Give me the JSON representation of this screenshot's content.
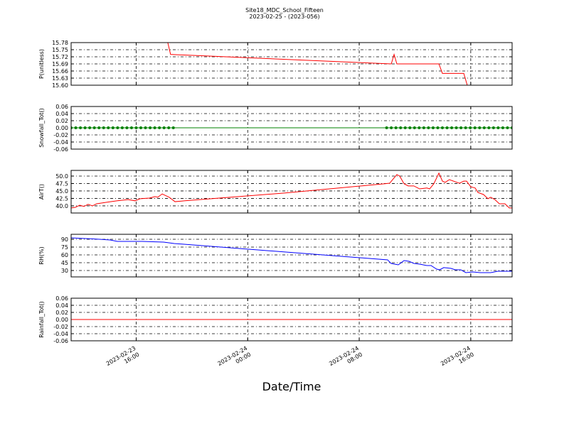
{
  "title": "Site18_MDC_School_Fifteen",
  "subtitle": "2023-02-25 - (2023-056)",
  "xlabel": "Date/Time",
  "chart_data": [
    {
      "type": "line",
      "ylabel": "P(unitless)",
      "color": "#ff0000",
      "grid": true,
      "ylim": [
        15.6,
        15.78
      ],
      "yticks": [
        {
          "value": 15.6,
          "label": "15.60"
        },
        15.63,
        15.66,
        15.69,
        15.72,
        15.75,
        15.78
      ],
      "x": [
        "2023-02-23 11:20",
        "2023-02-23 18:16",
        "2023-02-23 18:28",
        "2023-02-24 10:18",
        "2023-02-24 10:30",
        "2023-02-24 10:42",
        "2023-02-24 13:43",
        "2023-02-24 13:58",
        "2023-02-24 15:30",
        "2023-02-24 15:45",
        "2023-02-24 18:58"
      ],
      "values": [
        15.78,
        15.78,
        15.73,
        15.69,
        15.73,
        15.69,
        15.69,
        15.65,
        15.65,
        15.6,
        15.6
      ]
    },
    {
      "type": "line",
      "ylabel": "Snowfall_Tot()",
      "color": "#008000",
      "markers": true,
      "grid": true,
      "ylim": [
        -0.06,
        0.06
      ],
      "yticks": [
        -0.06,
        -0.04,
        -0.02,
        {
          "value": 0,
          "label": "0.00"
        },
        0.02,
        0.04,
        0.06
      ],
      "x": [
        "2023-02-23 11:20",
        "2023-02-23 11:40",
        "2023-02-23 12:00",
        "2023-02-23 12:20",
        "2023-02-23 12:40",
        "2023-02-23 13:00",
        "2023-02-23 13:20",
        "2023-02-23 13:40",
        "2023-02-23 14:00",
        "2023-02-23 14:20",
        "2023-02-23 14:40",
        "2023-02-23 15:00",
        "2023-02-23 15:20",
        "2023-02-23 15:40",
        "2023-02-23 16:00",
        "2023-02-23 16:20",
        "2023-02-23 16:40",
        "2023-02-23 17:00",
        "2023-02-23 17:20",
        "2023-02-23 17:40",
        "2023-02-23 18:00",
        "2023-02-23 18:20",
        "2023-02-23 18:40",
        "2023-02-24 09:58",
        "2023-02-24 10:18",
        "2023-02-24 10:38",
        "2023-02-24 10:58",
        "2023-02-24 11:18",
        "2023-02-24 11:38",
        "2023-02-24 11:58",
        "2023-02-24 12:18",
        "2023-02-24 12:38",
        "2023-02-24 12:58",
        "2023-02-24 13:18",
        "2023-02-24 13:38",
        "2023-02-24 13:58",
        "2023-02-24 14:18",
        "2023-02-24 14:38",
        "2023-02-24 14:58",
        "2023-02-24 15:18",
        "2023-02-24 15:38",
        "2023-02-24 15:58",
        "2023-02-24 16:18",
        "2023-02-24 16:38",
        "2023-02-24 16:58",
        "2023-02-24 17:18",
        "2023-02-24 17:38",
        "2023-02-24 17:58",
        "2023-02-24 18:18",
        "2023-02-24 18:38",
        "2023-02-24 18:58"
      ],
      "values": [
        0,
        0,
        0,
        0,
        0,
        0,
        0,
        0,
        0,
        0,
        0,
        0,
        0,
        0,
        0,
        0,
        0,
        0,
        0,
        0,
        0,
        0,
        0,
        0,
        0,
        0,
        0,
        0,
        0,
        0,
        0,
        0,
        0,
        0,
        0,
        0,
        0,
        0,
        0,
        0,
        0,
        0,
        0,
        0,
        0,
        0,
        0,
        0,
        0,
        0,
        0
      ]
    },
    {
      "type": "line",
      "ylabel": "AirT()",
      "color": "#ff0000",
      "grid": true,
      "ylim": [
        37.6,
        51.9
      ],
      "yticks": [
        {
          "value": 40,
          "label": "40.0"
        },
        42.5,
        {
          "value": 45,
          "label": "45.0"
        },
        47.5,
        {
          "value": 50,
          "label": "50.0"
        }
      ],
      "x": [
        "2023-02-23 11:20",
        "2023-02-23 11:38",
        "2023-02-23 11:57",
        "2023-02-23 12:15",
        "2023-02-23 12:33",
        "2023-02-23 12:52",
        "2023-02-23 13:10",
        "2023-02-23 13:53",
        "2023-02-23 14:39",
        "2023-02-23 15:25",
        "2023-02-23 15:55",
        "2023-02-23 16:17",
        "2023-02-23 16:57",
        "2023-02-23 17:21",
        "2023-02-23 17:33",
        "2023-02-23 17:52",
        "2023-02-23 18:22",
        "2023-02-23 18:47",
        "2023-02-23 19:30",
        "2023-02-24 02:38",
        "2023-02-24 09:47",
        "2023-02-24 10:11",
        "2023-02-24 10:42",
        "2023-02-24 10:54",
        "2023-02-24 11:13",
        "2023-02-24 11:31",
        "2023-02-24 11:55",
        "2023-02-24 12:20",
        "2023-02-24 12:51",
        "2023-02-24 13:03",
        "2023-02-24 13:21",
        "2023-02-24 13:43",
        "2023-02-24 13:58",
        "2023-02-24 14:10",
        "2023-02-24 14:28",
        "2023-02-24 14:53",
        "2023-02-24 15:11",
        "2023-02-24 15:30",
        "2023-02-24 15:42",
        "2023-02-24 16:00",
        "2023-02-24 16:19",
        "2023-02-24 16:31",
        "2023-02-24 16:55",
        "2023-02-24 17:14",
        "2023-02-24 17:26",
        "2023-02-24 17:44",
        "2023-02-24 18:03",
        "2023-02-24 18:27",
        "2023-02-24 18:46",
        "2023-02-24 18:58"
      ],
      "values": [
        39.3,
        39.5,
        40.2,
        39.8,
        40.5,
        40,
        40.7,
        41.2,
        41.7,
        42.1,
        41.7,
        42.4,
        42.6,
        43.1,
        42.9,
        44,
        42.9,
        41.4,
        41.7,
        44.3,
        47.4,
        47.6,
        50.5,
        50,
        47.4,
        46.7,
        46.7,
        45.7,
        46,
        45.7,
        47.4,
        51,
        48.3,
        47.9,
        48.8,
        48.1,
        47.6,
        48.3,
        48.3,
        46.4,
        46,
        44.5,
        43.8,
        42.4,
        42.9,
        42.1,
        40.7,
        40.7,
        39.3,
        39.3
      ]
    },
    {
      "type": "line",
      "ylabel": "RH(%)",
      "color": "#0000ff",
      "grid": true,
      "ylim": [
        17.7,
        99.5
      ],
      "yticks": [
        30,
        45,
        60,
        75,
        90
      ],
      "x": [
        "2023-02-23 11:20",
        "2023-02-23 12:21",
        "2023-02-23 13:22",
        "2023-02-23 14:08",
        "2023-02-23 14:39",
        "2023-02-23 16:26",
        "2023-02-23 17:58",
        "2023-02-23 18:44",
        "2023-02-24 10:02",
        "2023-02-24 10:17",
        "2023-02-24 10:48",
        "2023-02-24 11:13",
        "2023-02-24 11:34",
        "2023-02-24 11:55",
        "2023-02-24 12:20",
        "2023-02-24 12:51",
        "2023-02-24 13:09",
        "2023-02-24 13:33",
        "2023-02-24 13:46",
        "2023-02-24 14:04",
        "2023-02-24 14:35",
        "2023-02-24 14:53",
        "2023-02-24 15:17",
        "2023-02-24 15:39",
        "2023-02-24 16:09",
        "2023-02-24 16:40",
        "2023-02-24 17:26",
        "2023-02-24 17:57",
        "2023-02-24 18:58"
      ],
      "values": [
        92.7,
        91.4,
        90,
        88.6,
        85.9,
        85.9,
        84.5,
        81.8,
        50.5,
        43.6,
        40.9,
        49.1,
        47.7,
        43.6,
        42.3,
        39.5,
        39.5,
        32.7,
        31.4,
        35.5,
        34.1,
        31.4,
        31.4,
        25.9,
        27.3,
        25.9,
        25.9,
        28.6,
        28.6
      ]
    },
    {
      "type": "line",
      "ylabel": "Rainfall_Tot()",
      "color": "#ff0000",
      "grid": true,
      "ylim": [
        -0.06,
        0.06
      ],
      "yticks": [
        -0.06,
        -0.04,
        -0.02,
        {
          "value": 0,
          "label": "0.00"
        },
        0.02,
        0.04,
        0.06
      ],
      "xlim": [
        "2023-02-23 11:20",
        "2023-02-24 18:58"
      ],
      "xticks": [
        {
          "value": "2023-02-23 16:00",
          "label": "2023-02-23\n16:00"
        },
        {
          "value": "2023-02-24 00:00",
          "label": "2023-02-24\n00:00"
        },
        {
          "value": "2023-02-24 08:00",
          "label": "2023-02-24\n08:00"
        },
        {
          "value": "2023-02-24 16:00",
          "label": "2023-02-24\n16:00"
        }
      ],
      "x": [
        "2023-02-23 11:20",
        "2023-02-24 18:58"
      ],
      "values": [
        0,
        0
      ]
    }
  ]
}
